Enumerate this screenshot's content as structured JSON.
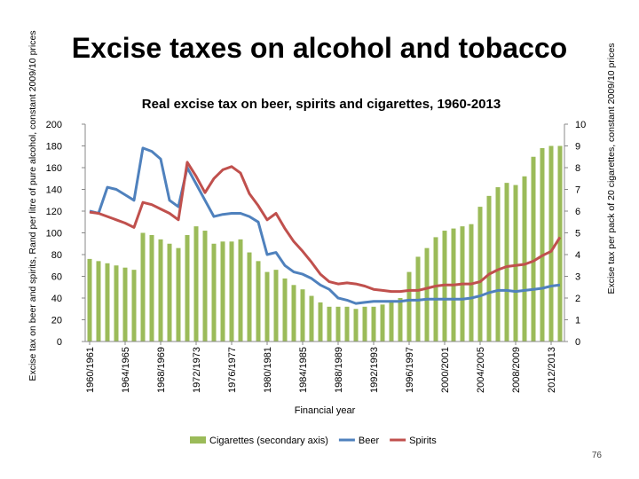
{
  "slide": {
    "title": "Excise taxes on alcohol and tobacco",
    "page_number": "76"
  },
  "chart_data": {
    "type": "bar",
    "title": "Real excise tax on beer, spirits and cigarettes, 1960-2013",
    "xlabel": "Financial year",
    "ylabel": "Excise tax on beer and spirits, Rand per litre of pure alcohol, constant 2009/10 prices",
    "y2label": "Excise tax per pack of 20 cigarettes, constant 2009/10 prices",
    "ylim": [
      0,
      200
    ],
    "y2lim": [
      0,
      10
    ],
    "yticks": [
      0,
      20,
      40,
      60,
      80,
      100,
      120,
      140,
      160,
      180,
      200
    ],
    "y2ticks": [
      0,
      1,
      2,
      3,
      4,
      5,
      6,
      7,
      8,
      9,
      10
    ],
    "grid": false,
    "legend_position": "bottom",
    "x": [
      "1960/1961",
      "1961/1962",
      "1962/1963",
      "1963/1964",
      "1964/1965",
      "1965/1966",
      "1966/1967",
      "1967/1968",
      "1968/1969",
      "1969/1970",
      "1970/1971",
      "1971/1972",
      "1972/1973",
      "1973/1974",
      "1974/1975",
      "1975/1976",
      "1976/1977",
      "1977/1978",
      "1978/1979",
      "1979/1980",
      "1980/1981",
      "1981/1982",
      "1982/1983",
      "1983/1984",
      "1984/1985",
      "1985/1986",
      "1986/1987",
      "1987/1988",
      "1988/1989",
      "1989/1990",
      "1990/1991",
      "1991/1992",
      "1992/1993",
      "1993/1994",
      "1994/1995",
      "1995/1996",
      "1996/1997",
      "1997/1998",
      "1998/1999",
      "1999/2000",
      "2000/2001",
      "2001/2002",
      "2002/2003",
      "2003/2004",
      "2004/2005",
      "2005/2006",
      "2006/2007",
      "2007/2008",
      "2008/2009",
      "2009/2010",
      "2010/2011",
      "2011/2012",
      "2012/2013",
      "2013/2014"
    ],
    "tick_labels": [
      "1960/1961",
      "1964/1965",
      "1968/1969",
      "1972/1973",
      "1976/1977",
      "1980/1981",
      "1984/1985",
      "1988/1989",
      "1992/1993",
      "1996/1997",
      "2000/2001",
      "2004/2005",
      "2008/2009",
      "2012/2013"
    ],
    "series": [
      {
        "name": "Cigarettes (secondary axis)",
        "type": "bar",
        "axis": "secondary",
        "color": "#9bbb59",
        "values": [
          3.8,
          3.7,
          3.6,
          3.5,
          3.4,
          3.3,
          5.0,
          4.9,
          4.7,
          4.5,
          4.3,
          4.9,
          5.3,
          5.1,
          4.5,
          4.6,
          4.6,
          4.7,
          4.1,
          3.7,
          3.2,
          3.3,
          2.9,
          2.6,
          2.4,
          2.1,
          1.8,
          1.6,
          1.6,
          1.6,
          1.5,
          1.6,
          1.6,
          1.7,
          1.9,
          2.0,
          3.2,
          3.9,
          4.3,
          4.8,
          5.1,
          5.2,
          5.3,
          5.4,
          6.2,
          6.7,
          7.1,
          7.3,
          7.2,
          7.6,
          8.5,
          8.9,
          9.0,
          9.0
        ]
      },
      {
        "name": "Beer",
        "type": "line",
        "axis": "primary",
        "color": "#4f81bd",
        "values": [
          120,
          118,
          142,
          140,
          135,
          130,
          178,
          175,
          168,
          130,
          124,
          160,
          145,
          130,
          115,
          117,
          118,
          118,
          115,
          110,
          80,
          82,
          70,
          64,
          62,
          58,
          52,
          48,
          40,
          38,
          35,
          36,
          37,
          37,
          37,
          37,
          38,
          38,
          39,
          39,
          39,
          39,
          39,
          40,
          42,
          45,
          47,
          47,
          46,
          47,
          48,
          49,
          51,
          52
        ]
      },
      {
        "name": "Spirits",
        "type": "line",
        "axis": "primary",
        "color": "#c0504d",
        "values": [
          119,
          118,
          115,
          112,
          109,
          105,
          128,
          126,
          122,
          118,
          112,
          165,
          152,
          137,
          150,
          158,
          161,
          155,
          136,
          125,
          112,
          118,
          104,
          92,
          83,
          73,
          62,
          55,
          53,
          54,
          53,
          51,
          48,
          47,
          46,
          46,
          47,
          47,
          49,
          51,
          52,
          52,
          53,
          53,
          55,
          62,
          66,
          69,
          70,
          71,
          74,
          79,
          83,
          96
        ]
      }
    ]
  }
}
